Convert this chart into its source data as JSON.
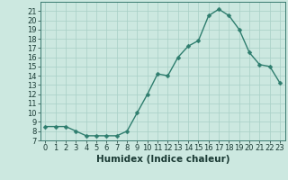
{
  "x": [
    0,
    1,
    2,
    3,
    4,
    5,
    6,
    7,
    8,
    9,
    10,
    11,
    12,
    13,
    14,
    15,
    16,
    17,
    18,
    19,
    20,
    21,
    22,
    23
  ],
  "y": [
    8.5,
    8.5,
    8.5,
    8.0,
    7.5,
    7.5,
    7.5,
    7.5,
    8.0,
    10.0,
    12.0,
    14.2,
    14.0,
    16.0,
    17.2,
    17.8,
    20.5,
    21.2,
    20.5,
    19.0,
    16.5,
    15.2,
    15.0,
    13.2
  ],
  "line_color": "#2e7d6e",
  "marker_color": "#2e7d6e",
  "bg_color": "#cce8e0",
  "grid_color": "#a8cfc6",
  "xlabel": "Humidex (Indice chaleur)",
  "xlim": [
    -0.5,
    23.5
  ],
  "ylim": [
    7,
    22
  ],
  "yticks": [
    7,
    8,
    9,
    10,
    11,
    12,
    13,
    14,
    15,
    16,
    17,
    18,
    19,
    20,
    21
  ],
  "xticks": [
    0,
    1,
    2,
    3,
    4,
    5,
    6,
    7,
    8,
    9,
    10,
    11,
    12,
    13,
    14,
    15,
    16,
    17,
    18,
    19,
    20,
    21,
    22,
    23
  ],
  "marker_size": 2.5,
  "line_width": 1.0,
  "xlabel_fontsize": 7.5,
  "tick_fontsize": 6.0,
  "spine_color": "#3a7a70"
}
